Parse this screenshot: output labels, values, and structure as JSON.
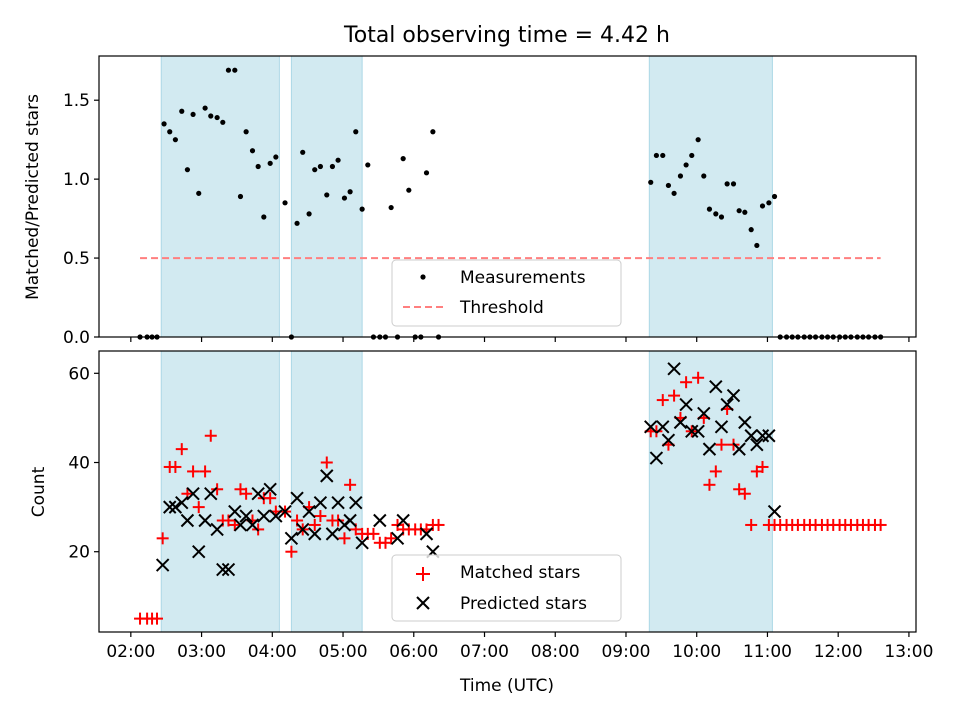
{
  "figure": {
    "title": "Total observing time = 4.42 h"
  },
  "colors": {
    "shade": "#add8e6",
    "threshold": "#ff7f7f",
    "matched": "#ff0000",
    "predicted": "#000000",
    "measurement": "#000000"
  },
  "chart_data": [
    {
      "id": "top",
      "type": "scatter",
      "xlabel": "",
      "ylabel": "Matched/Predicted stars",
      "x_unit": "hours UTC",
      "xlim": [
        1.55,
        13.1
      ],
      "ylim": [
        0,
        1.78
      ],
      "yticks": [
        0.0,
        0.5,
        1.0,
        1.5
      ],
      "ytick_labels": [
        "0.0",
        "0.5",
        "1.0",
        "1.5"
      ],
      "shaded_intervals": [
        [
          2.43,
          4.1
        ],
        [
          4.27,
          5.27
        ],
        [
          9.33,
          11.07
        ]
      ],
      "legend": {
        "location": "lower center",
        "entries": [
          "Measurements",
          "Threshold"
        ]
      },
      "series": [
        {
          "name": "Measurements",
          "marker": "dot",
          "x": [
            2.13,
            2.23,
            2.3,
            2.37,
            2.47,
            2.55,
            2.63,
            2.72,
            2.8,
            2.88,
            2.96,
            3.05,
            3.13,
            3.22,
            3.3,
            3.38,
            3.47,
            3.55,
            3.63,
            3.72,
            3.8,
            3.88,
            3.97,
            4.05,
            4.18,
            4.27,
            4.35,
            4.43,
            4.52,
            4.6,
            4.68,
            4.77,
            4.85,
            4.93,
            5.02,
            5.1,
            5.18,
            5.27,
            5.35,
            5.43,
            5.52,
            5.6,
            5.68,
            5.77,
            5.85,
            5.93,
            6.02,
            6.1,
            6.18,
            6.27,
            6.35,
            9.35,
            9.43,
            9.52,
            9.6,
            9.68,
            9.77,
            9.85,
            9.93,
            10.02,
            10.1,
            10.18,
            10.27,
            10.35,
            10.43,
            10.52,
            10.6,
            10.68,
            10.77,
            10.85,
            10.93,
            11.02,
            11.1,
            11.18,
            11.27,
            11.35,
            11.43,
            11.52,
            11.6,
            11.68,
            11.77,
            11.85,
            11.93,
            12.02,
            12.1,
            12.18,
            12.27,
            12.35,
            12.43,
            12.52,
            12.6
          ],
          "y": [
            0,
            0,
            0,
            0,
            1.35,
            1.3,
            1.25,
            1.43,
            1.06,
            1.41,
            0.91,
            1.45,
            1.4,
            1.39,
            1.36,
            1.69,
            1.69,
            0.89,
            1.3,
            1.18,
            1.08,
            0.76,
            1.1,
            1.14,
            0.85,
            0,
            0.72,
            1.17,
            0.78,
            1.06,
            1.08,
            0.9,
            1.08,
            1.12,
            0.88,
            0.92,
            1.3,
            0.81,
            1.09,
            0,
            0,
            0,
            0.82,
            0,
            1.13,
            0.93,
            0,
            0,
            1.04,
            1.3,
            0,
            0.98,
            1.15,
            1.15,
            0.96,
            0.91,
            1.02,
            1.09,
            1.15,
            1.25,
            1.02,
            0.81,
            0.78,
            0.76,
            0.97,
            0.97,
            0.8,
            0.79,
            0.68,
            0.58,
            0.83,
            0.85,
            0.89,
            0,
            0,
            0,
            0,
            0,
            0,
            0,
            0,
            0,
            0,
            0,
            0,
            0,
            0,
            0,
            0,
            0,
            0
          ]
        },
        {
          "name": "Threshold",
          "type": "line",
          "style": "dashed",
          "x": [
            2.13,
            12.6
          ],
          "y": [
            0.5,
            0.5
          ]
        }
      ]
    },
    {
      "id": "bottom",
      "type": "scatter",
      "xlabel": "Time (UTC)",
      "ylabel": "Count",
      "x_unit": "hours UTC",
      "xlim": [
        1.55,
        13.1
      ],
      "ylim": [
        2,
        65
      ],
      "yticks": [
        20,
        40,
        60
      ],
      "ytick_labels": [
        "20",
        "40",
        "60"
      ],
      "xticks": [
        2,
        3,
        4,
        5,
        6,
        7,
        8,
        9,
        10,
        11,
        12,
        13
      ],
      "xtick_labels": [
        "02:00",
        "03:00",
        "04:00",
        "05:00",
        "06:00",
        "07:00",
        "08:00",
        "09:00",
        "10:00",
        "11:00",
        "12:00",
        "13:00"
      ],
      "shaded_intervals": [
        [
          2.43,
          4.1
        ],
        [
          4.27,
          5.27
        ],
        [
          9.33,
          11.07
        ]
      ],
      "legend": {
        "location": "lower center",
        "entries": [
          "Matched stars",
          "Predicted stars"
        ]
      },
      "series": [
        {
          "name": "Matched stars",
          "marker": "plus",
          "x": [
            2.13,
            2.23,
            2.3,
            2.37,
            2.45,
            2.55,
            2.63,
            2.72,
            2.8,
            2.88,
            2.96,
            3.05,
            3.13,
            3.22,
            3.3,
            3.38,
            3.47,
            3.55,
            3.63,
            3.72,
            3.8,
            3.88,
            3.97,
            4.05,
            4.18,
            4.27,
            4.35,
            4.43,
            4.52,
            4.6,
            4.68,
            4.77,
            4.85,
            4.93,
            5.02,
            5.1,
            5.18,
            5.27,
            5.35,
            5.43,
            5.52,
            5.6,
            5.68,
            5.77,
            5.85,
            5.93,
            6.02,
            6.1,
            6.18,
            6.27,
            6.35,
            9.35,
            9.43,
            9.52,
            9.6,
            9.68,
            9.77,
            9.85,
            9.93,
            10.02,
            10.1,
            10.18,
            10.27,
            10.35,
            10.43,
            10.52,
            10.6,
            10.68,
            10.77,
            10.85,
            10.93,
            11.02,
            11.1,
            11.18,
            11.27,
            11.35,
            11.43,
            11.52,
            11.6,
            11.68,
            11.77,
            11.85,
            11.93,
            12.02,
            12.1,
            12.18,
            12.27,
            12.35,
            12.43,
            12.52,
            12.6
          ],
          "y": [
            5,
            5,
            5,
            5,
            23,
            39,
            39,
            43,
            33,
            38,
            30,
            38,
            46,
            34,
            27,
            27,
            26,
            34,
            33,
            27,
            25,
            32,
            32,
            29,
            29,
            20,
            27,
            25,
            30,
            26,
            28,
            40,
            27,
            27,
            23,
            35,
            25,
            24,
            24,
            24,
            22,
            22,
            23,
            26,
            25,
            25,
            25,
            25,
            25,
            26,
            26,
            47,
            47,
            54,
            44,
            55,
            50,
            58,
            47,
            59,
            50,
            35,
            38,
            44,
            52,
            44,
            34,
            33,
            26,
            38,
            39,
            26,
            26,
            26,
            26,
            26,
            26,
            26,
            26,
            26,
            26,
            26,
            26,
            26,
            26,
            26,
            26,
            26,
            26,
            26,
            26
          ]
        },
        {
          "name": "Predicted stars",
          "marker": "x",
          "x": [
            2.45,
            2.55,
            2.63,
            2.72,
            2.8,
            2.88,
            2.96,
            3.05,
            3.13,
            3.22,
            3.3,
            3.38,
            3.47,
            3.55,
            3.63,
            3.72,
            3.8,
            3.88,
            3.97,
            4.05,
            4.18,
            4.27,
            4.35,
            4.43,
            4.52,
            4.6,
            4.68,
            4.77,
            4.85,
            4.93,
            5.02,
            5.1,
            5.18,
            5.27,
            5.52,
            5.77,
            5.85,
            6.18,
            6.27,
            9.35,
            9.43,
            9.52,
            9.6,
            9.68,
            9.77,
            9.85,
            9.93,
            10.02,
            10.1,
            10.18,
            10.27,
            10.35,
            10.43,
            10.52,
            10.6,
            10.68,
            10.77,
            10.85,
            10.93,
            11.02,
            11.1
          ],
          "y": [
            17,
            30,
            30,
            31,
            27,
            33,
            20,
            27,
            33,
            25,
            16,
            16,
            29,
            26,
            28,
            26,
            33,
            28,
            34,
            28,
            29,
            23,
            32,
            25,
            29,
            24,
            31,
            37,
            24,
            31,
            26,
            27,
            31,
            22,
            27,
            23,
            27,
            24,
            20,
            48,
            41,
            48,
            45,
            61,
            49,
            53,
            47,
            47,
            51,
            43,
            57,
            48,
            53,
            55,
            43,
            49,
            46,
            44,
            46,
            46,
            29
          ]
        }
      ]
    }
  ]
}
